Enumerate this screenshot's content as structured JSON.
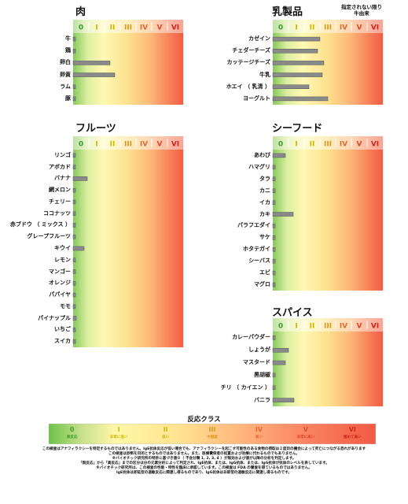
{
  "classes": {
    "labels": [
      "0",
      "I",
      "II",
      "III",
      "IV",
      "V",
      "VI"
    ],
    "colors": {
      "class0": "#3d9a2e",
      "class1": "#c8b800",
      "class2": "#c8b800",
      "class3": "#d89820",
      "class4": "#e06a30",
      "class5": "#d84a2a",
      "class6": "#c8281e",
      "bar": "#8a8a8a",
      "bar_stroke": "#555555"
    }
  },
  "charts": [
    {
      "title": "肉",
      "note": "",
      "chart_data": {
        "type": "bar",
        "orientation": "horizontal",
        "categories": [
          "牛",
          "鶏",
          "卵白",
          "卵黄",
          "ラム",
          "豚"
        ],
        "values": [
          0.12,
          0.12,
          2.35,
          2.65,
          0.12,
          0.12
        ],
        "xlim": [
          0,
          7
        ]
      }
    },
    {
      "title": "乳製品",
      "note": "指定されない限り\n牛由来",
      "chart_data": {
        "type": "bar",
        "orientation": "horizontal",
        "categories": [
          "カゼイン",
          "チェダーチーズ",
          "カッテージチーズ",
          "牛乳",
          "ホエイ （ 乳清 ）",
          "ヨーグルト"
        ],
        "values": [
          3.0,
          2.85,
          3.25,
          3.15,
          2.3,
          3.5
        ],
        "xlim": [
          0,
          7
        ]
      }
    },
    {
      "title": "フルーツ",
      "note": "",
      "chart_data": {
        "type": "bar",
        "orientation": "horizontal",
        "categories": [
          "リンゴ",
          "アボカド",
          "バナナ",
          "網メロン",
          "チェリー",
          "ココナッツ",
          "赤ブドウ （ ミックス ）",
          "グレープフルーツ",
          "キウイ",
          "レモン",
          "マンゴー",
          "オレンジ",
          "パパイヤ",
          "モモ",
          "パイナップル",
          "いちご",
          "スイカ"
        ],
        "values": [
          0.12,
          0.12,
          0.9,
          0.12,
          0.12,
          0.12,
          0.12,
          0.12,
          0.7,
          0.12,
          0.12,
          0.12,
          0.12,
          0.12,
          0.2,
          0.12,
          0.12
        ],
        "xlim": [
          0,
          7
        ]
      }
    },
    {
      "title": "シーフード",
      "note": "",
      "chart_data": {
        "type": "bar",
        "orientation": "horizontal",
        "categories": [
          "あわび",
          "ハマグリ",
          "タラ",
          "カニ",
          "イカ",
          "カキ",
          "パラフエダイ",
          "サケ",
          "ホタテガイ",
          "シーバス",
          "エビ",
          "マグロ"
        ],
        "values": [
          0.8,
          0.12,
          0.12,
          0.12,
          0.12,
          1.3,
          0.12,
          0.12,
          0.12,
          0.12,
          0.12,
          0.12
        ],
        "xlim": [
          0,
          7
        ]
      }
    },
    {
      "title": "スパイス",
      "note": "",
      "chart_data": {
        "type": "bar",
        "orientation": "horizontal",
        "categories": [
          "カレーパウダー",
          "しょうが",
          "マスタード",
          "黒胡椒",
          "チリ （ カイエン ）",
          "バニラ"
        ],
        "values": [
          0.12,
          1.0,
          0.8,
          0.12,
          0.12,
          1.35
        ],
        "xlim": [
          0,
          7
        ]
      }
    }
  ],
  "legend": {
    "title": "反応クラス",
    "items": [
      {
        "num": "0",
        "label": "無反応"
      },
      {
        "num": "I",
        "label": "非常に低い"
      },
      {
        "num": "II",
        "label": "低い"
      },
      {
        "num": "III",
        "label": "中程度"
      },
      {
        "num": "IV",
        "label": "高い"
      },
      {
        "num": "V",
        "label": "非常に高い"
      },
      {
        "num": "VI",
        "label": "極めて高い"
      }
    ]
  },
  "footnotes": [
    "この検査はアナフィラクシーを特定するものではありません。IgE抗体反応が低い場合でも、アナフィラクシーを起こす可能性のある食物の摂取は２度目の機会によって死亡につながる恐れがあります",
    "この検査は診断を目的とするものではありません。また、医療費保者の処置および治療に代わるものでもありません。",
    "※バイオチック研究所の特許に基づき値０（ 不含分類 1, 2, 3, 4 ）が無効および値が以降の分析を判定します。",
    "「無反応」から「高反応」までの区分は分の元素分析によって判定され、IgE抗体、または、IgG抗体、または、IgG抗体が抗体のレベルを表しています。",
    "※バイオチック研究所は、この検査の性能・特性を臨床に承認しています。この検査は FDA の審査を得ているものではありません。",
    "IgE抗体は即延型の過敏反応に関連し得るものであり、IgG抗体は非即型の過敏反応に関連し得るものです。"
  ]
}
